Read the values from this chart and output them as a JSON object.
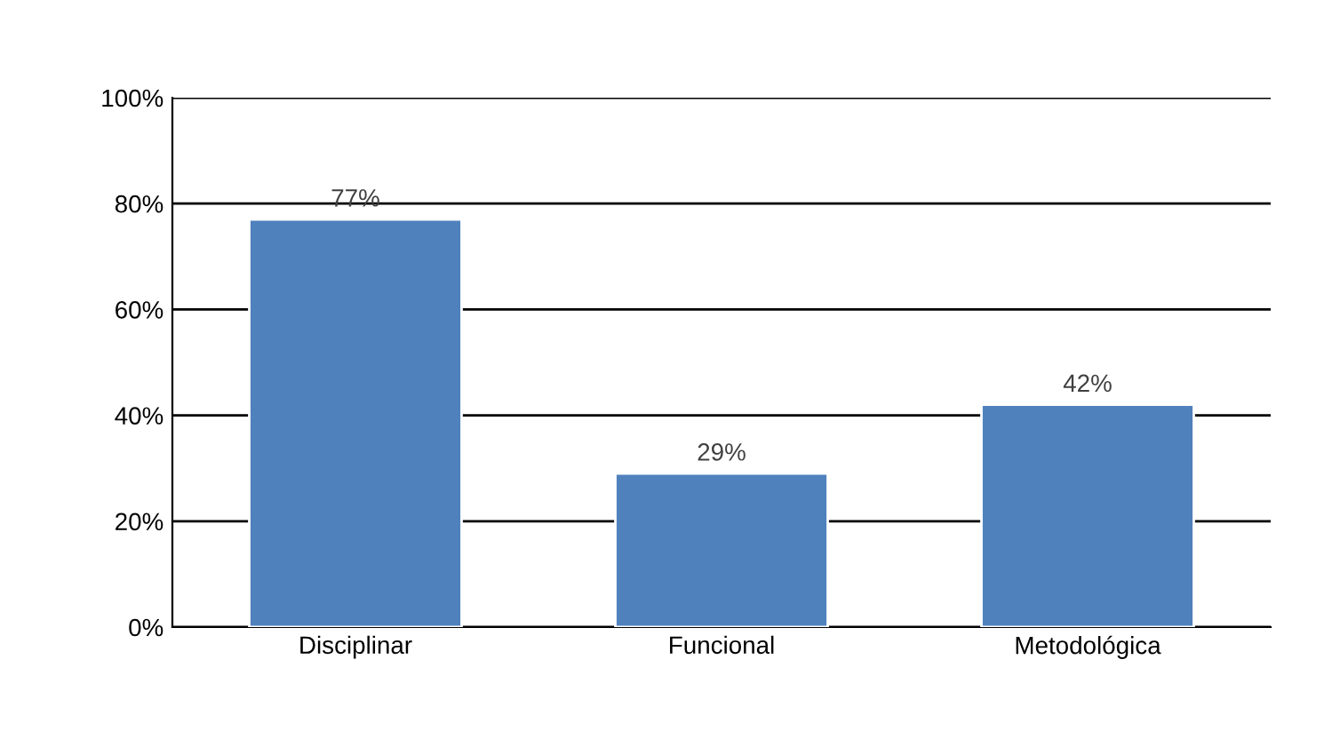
{
  "chart_data": {
    "type": "bar",
    "categories": [
      "Disciplinar",
      "Funcional",
      "Metodológica"
    ],
    "values": [
      77,
      29,
      42
    ],
    "value_labels": [
      "77%",
      "29%",
      "42%"
    ],
    "color": "#4f81bd",
    "ylim": [
      0,
      100
    ],
    "yticks": [
      {
        "value": 0,
        "label": "0%"
      },
      {
        "value": 20,
        "label": "20%"
      },
      {
        "value": 40,
        "label": "40%"
      },
      {
        "value": 60,
        "label": "60%"
      },
      {
        "value": 80,
        "label": "80%"
      },
      {
        "value": 100,
        "label": "100%"
      }
    ],
    "grid": "y",
    "legend": false
  }
}
